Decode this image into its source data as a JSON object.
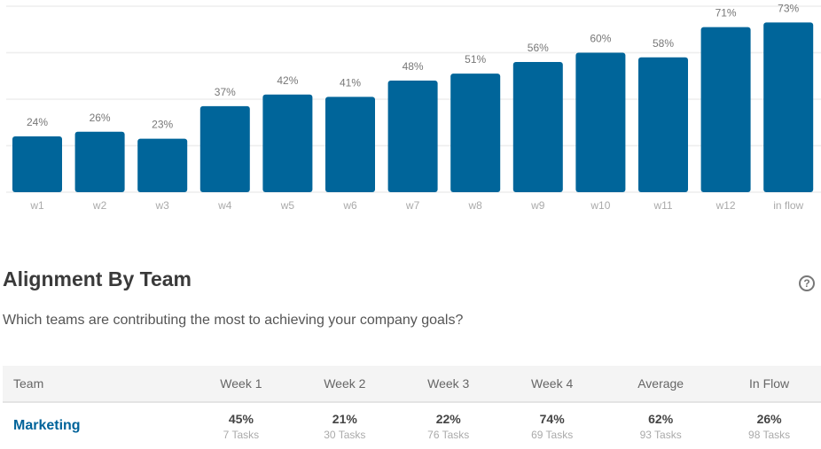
{
  "chart_data": {
    "type": "bar",
    "categories": [
      "w1",
      "w2",
      "w3",
      "w4",
      "w5",
      "w6",
      "w7",
      "w8",
      "w9",
      "w10",
      "w11",
      "w12",
      "in flow"
    ],
    "values": [
      24,
      26,
      23,
      37,
      42,
      41,
      48,
      51,
      56,
      60,
      58,
      71,
      73
    ],
    "labels": [
      "24%",
      "26%",
      "23%",
      "37%",
      "42%",
      "41%",
      "48%",
      "51%",
      "56%",
      "60%",
      "58%",
      "71%",
      "73%"
    ],
    "ylim": [
      0,
      80
    ],
    "grid": true,
    "bar_color": "#00659a"
  },
  "section": {
    "title": "Alignment By Team",
    "subtitle": "Which teams are contributing the most to achieving your company goals?",
    "help_icon": "question-circle-icon"
  },
  "table": {
    "headers": [
      "Team",
      "Week 1",
      "Week 2",
      "Week 3",
      "Week 4",
      "Average",
      "In Flow"
    ],
    "rows": [
      {
        "team": "Marketing",
        "cells": [
          {
            "pct": "45%",
            "tasks": "7 Tasks"
          },
          {
            "pct": "21%",
            "tasks": "30 Tasks"
          },
          {
            "pct": "22%",
            "tasks": "76 Tasks"
          },
          {
            "pct": "74%",
            "tasks": "69 Tasks"
          },
          {
            "pct": "62%",
            "tasks": "93 Tasks"
          },
          {
            "pct": "26%",
            "tasks": "98 Tasks"
          }
        ]
      }
    ]
  }
}
